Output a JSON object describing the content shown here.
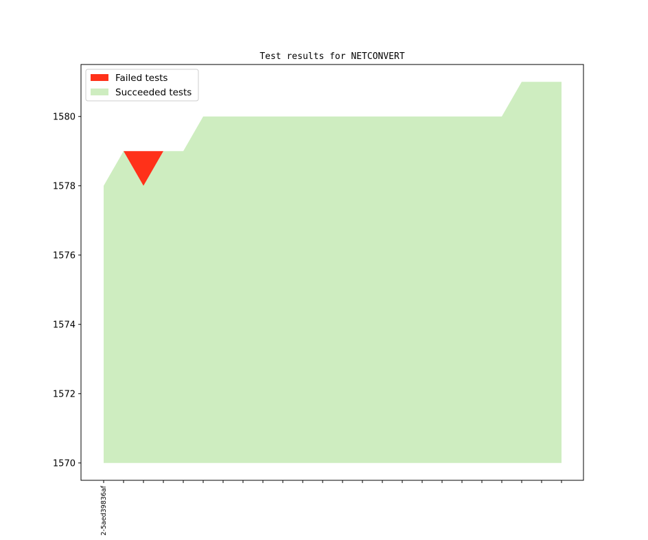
{
  "chart_data": {
    "type": "area",
    "title": "Test results for NETCONVERT",
    "xlabel": "",
    "ylabel": "",
    "ylim": [
      1569.5,
      1581.5
    ],
    "yticks": [
      1570,
      1572,
      1574,
      1576,
      1578,
      1580
    ],
    "ytick_labels": [
      "1570",
      "1572",
      "1574",
      "1576",
      "1578",
      "1580"
    ],
    "x_count": 24,
    "xtick_labels": [
      "2-5aed39836af",
      "",
      "",
      "",
      "",
      "",
      "",
      "",
      "",
      "",
      "",
      "",
      "",
      "",
      "",
      "",
      "",
      "",
      "",
      "",
      "",
      "",
      "",
      ""
    ],
    "baseline": 1570,
    "legend_position": "upper-left",
    "grid": false,
    "series": [
      {
        "name": "Failed tests",
        "color": "#ff3119",
        "lower": [
          1578,
          1579,
          1578,
          1579,
          1579,
          1580,
          1580,
          1580,
          1580,
          1580,
          1580,
          1580,
          1580,
          1580,
          1580,
          1580,
          1580,
          1580,
          1580,
          1580,
          1580,
          1581,
          1581,
          1581
        ],
        "upper": [
          1578,
          1579,
          1579,
          1579,
          1579,
          1580,
          1580,
          1580,
          1580,
          1580,
          1580,
          1580,
          1580,
          1580,
          1580,
          1580,
          1580,
          1580,
          1580,
          1580,
          1580,
          1581,
          1581,
          1581
        ]
      },
      {
        "name": "Succeeded tests",
        "color": "#ceedc0",
        "values": [
          1578,
          1579,
          1578,
          1579,
          1579,
          1580,
          1580,
          1580,
          1580,
          1580,
          1580,
          1580,
          1580,
          1580,
          1580,
          1580,
          1580,
          1580,
          1580,
          1580,
          1580,
          1581,
          1581,
          1581
        ]
      }
    ]
  }
}
